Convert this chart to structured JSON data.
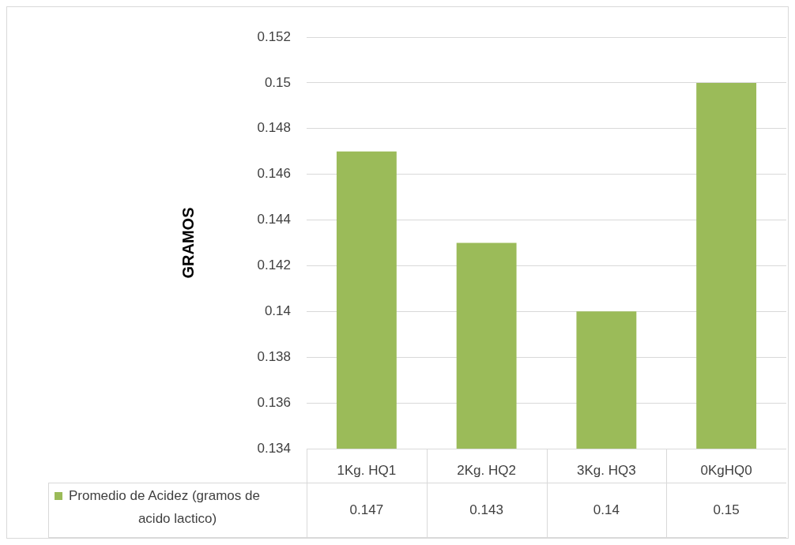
{
  "chart_data": {
    "type": "bar",
    "ylabel": "GRAMOS",
    "categories": [
      "1Kg. HQ1",
      "2Kg. HQ2",
      "3Kg. HQ3",
      "0KgHQ0"
    ],
    "series": [
      {
        "name": "Promedio de Acidez (gramos de acido lactico)",
        "color": "#9bbb59",
        "values": [
          0.147,
          0.143,
          0.14,
          0.15
        ]
      }
    ],
    "ylim": [
      0.134,
      0.152
    ],
    "yticks": [
      0.134,
      0.136,
      0.138,
      0.14,
      0.142,
      0.144,
      0.146,
      0.148,
      0.15,
      0.152
    ],
    "grid": "y",
    "data_labels": true
  }
}
